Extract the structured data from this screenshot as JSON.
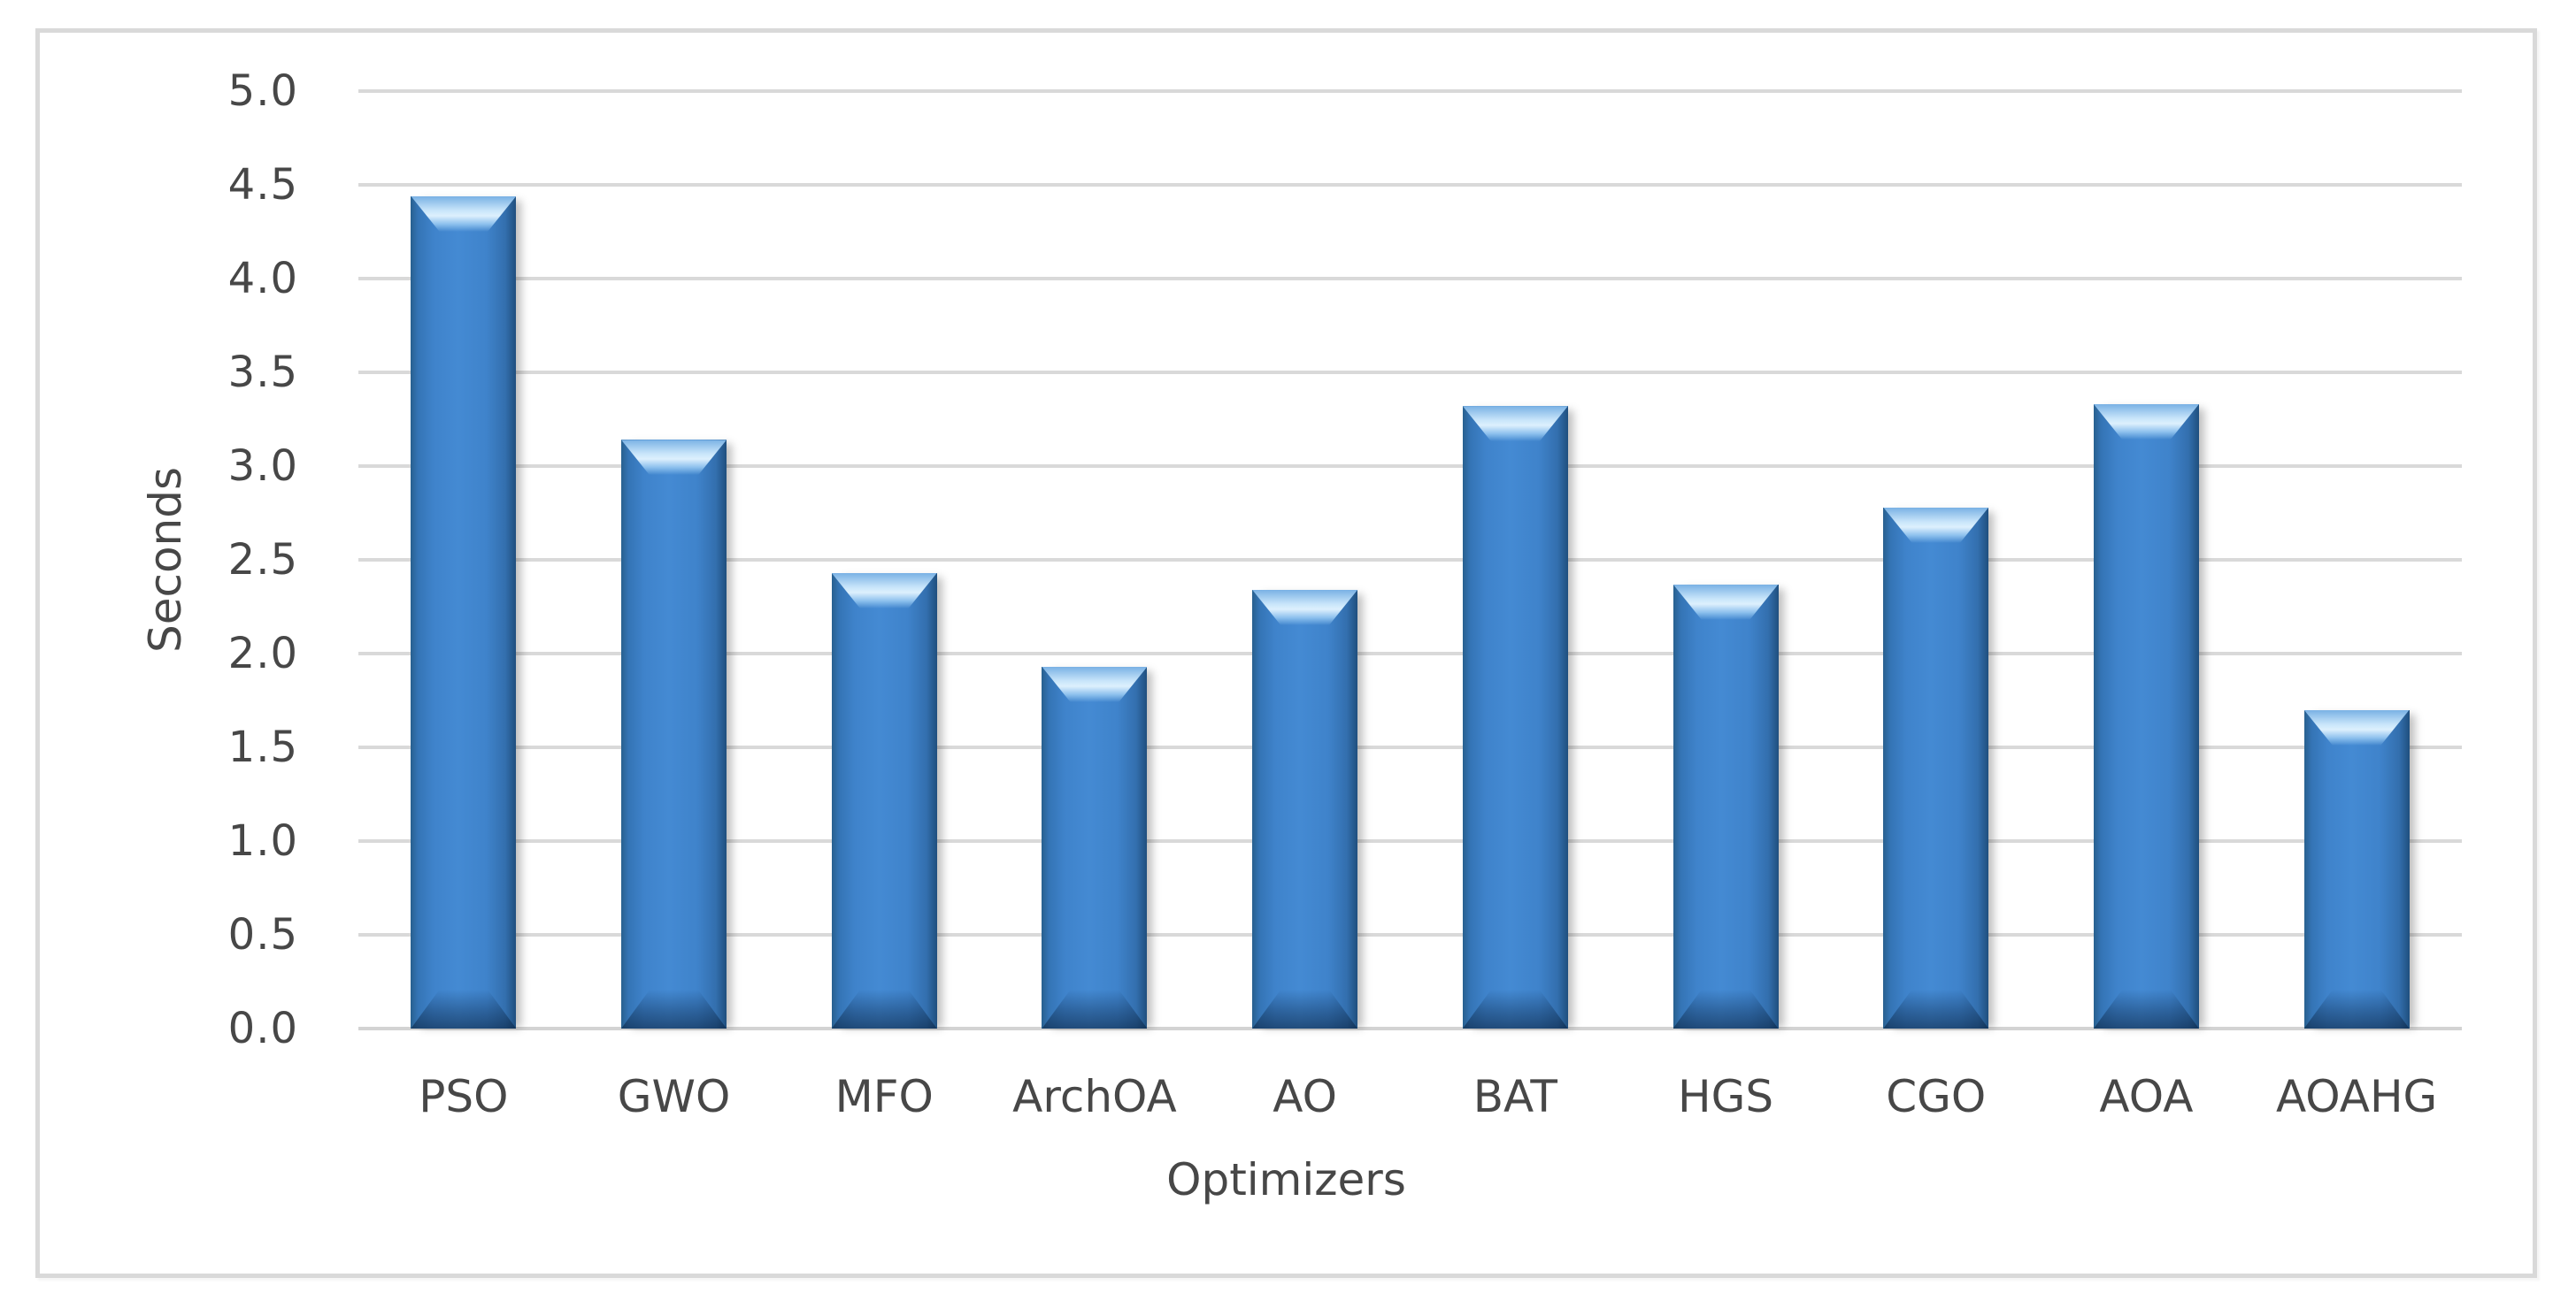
{
  "chart_data": {
    "type": "bar",
    "title": "",
    "xlabel": "Optimizers",
    "ylabel": "Seconds",
    "categories": [
      "PSO",
      "GWO",
      "MFO",
      "ArchOA",
      "AO",
      "BAT",
      "HGS",
      "CGO",
      "AOA",
      "AOAHG"
    ],
    "values": [
      4.44,
      3.14,
      2.43,
      1.93,
      2.34,
      3.32,
      2.37,
      2.78,
      3.33,
      1.7
    ],
    "ylim": [
      0,
      5
    ],
    "ytick_labels": [
      "0.0",
      "0.5",
      "1.0",
      "1.5",
      "2.0",
      "2.5",
      "3.0",
      "3.5",
      "4.0",
      "4.5",
      "5.0"
    ],
    "grid": true,
    "legend": null,
    "bar_color": "#3f83cb",
    "bar_edge_color": "#28608f",
    "gridline_color": "#d9d9d9",
    "text_color": "#474747",
    "frame_border_color": "#d9d9d9",
    "background_color": "#ffffff"
  }
}
